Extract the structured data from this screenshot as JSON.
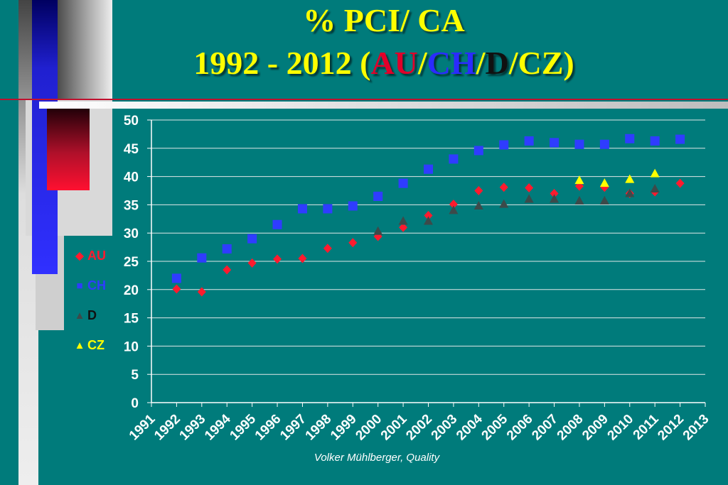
{
  "slide": {
    "title_line1": "%  PCI/ CA",
    "title_line2_prefix": "1992 - 2012  (",
    "title_au": "AU",
    "title_sep1": "/",
    "title_ch": "CH",
    "title_sep2": "/",
    "title_d": "D",
    "title_sep3": "/",
    "title_cz": "CZ",
    "title_suffix": ")",
    "footer": "Volker Mühlberger, Quality"
  },
  "legend": [
    {
      "label": "AU",
      "symbol": "◆",
      "color": "#ff1a2e"
    },
    {
      "label": "CH",
      "symbol": "■",
      "color": "#2f3cff"
    },
    {
      "label": "D",
      "symbol": "▲",
      "color": "#3c4a4a"
    },
    {
      "label": "CZ",
      "symbol": "▲",
      "color": "#ffff00"
    }
  ],
  "chart_data": {
    "type": "scatter",
    "title": "%  PCI/ CA 1992 - 2012 (AU/CH/D/CZ)",
    "xlabel": "",
    "ylabel": "",
    "xlim": [
      1991,
      2013
    ],
    "ylim": [
      0,
      50
    ],
    "x_ticks": [
      "1991",
      "1992",
      "1993",
      "1994",
      "1995",
      "1996",
      "1997",
      "1998",
      "1999",
      "2000",
      "2001",
      "2002",
      "2003",
      "2004",
      "2005",
      "2006",
      "2007",
      "2008",
      "2009",
      "2010",
      "2011",
      "2012",
      "2013"
    ],
    "y_ticks": [
      "0",
      "5",
      "10",
      "15",
      "20",
      "25",
      "30",
      "35",
      "40",
      "45",
      "50"
    ],
    "grid": "horizontal",
    "legend_position": "left",
    "series": [
      {
        "name": "AU",
        "marker": "diamond",
        "color": "#ff1a2e",
        "x": [
          1992,
          1993,
          1994,
          1995,
          1996,
          1997,
          1998,
          1999,
          2000,
          2001,
          2002,
          2003,
          2004,
          2005,
          2006,
          2007,
          2008,
          2009,
          2010,
          2011,
          2012
        ],
        "y": [
          20.1,
          19.6,
          23.5,
          24.7,
          25.4,
          25.5,
          27.3,
          28.3,
          29.4,
          31.0,
          33.1,
          35.1,
          37.5,
          38.1,
          38.0,
          37.0,
          38.3,
          38.1,
          37.0,
          37.3,
          38.8
        ]
      },
      {
        "name": "CH",
        "marker": "square",
        "color": "#2f3cff",
        "x": [
          1992,
          1993,
          1994,
          1995,
          1996,
          1997,
          1998,
          1999,
          2000,
          2001,
          2002,
          2003,
          2004,
          2005,
          2006,
          2007,
          2008,
          2009,
          2010,
          2011,
          2012
        ],
        "y": [
          22.0,
          25.6,
          27.2,
          29.0,
          31.5,
          34.3,
          34.3,
          34.8,
          36.5,
          38.8,
          41.3,
          43.1,
          44.6,
          45.6,
          46.3,
          46.0,
          45.7,
          45.7,
          46.7,
          46.3,
          46.6
        ]
      },
      {
        "name": "D",
        "marker": "triangle",
        "color": "#3c4a4a",
        "x": [
          2000,
          2001,
          2002,
          2003,
          2004,
          2005,
          2006,
          2007,
          2008,
          2009,
          2010,
          2011
        ],
        "y": [
          30.3,
          32.1,
          32.1,
          34.0,
          34.8,
          35.1,
          36.0,
          36.0,
          35.7,
          35.7,
          37.0,
          37.8
        ]
      },
      {
        "name": "CZ",
        "marker": "triangle",
        "color": "#ffff00",
        "x": [
          2008,
          2009,
          2010,
          2011
        ],
        "y": [
          39.3,
          38.8,
          39.5,
          40.5
        ]
      }
    ]
  }
}
